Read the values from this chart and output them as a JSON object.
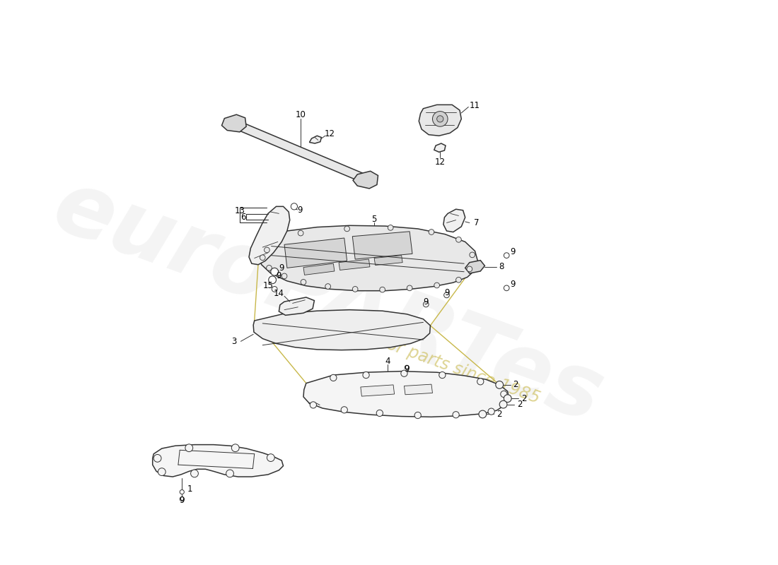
{
  "background_color": "#ffffff",
  "line_color": "#333333",
  "fill_light": "#f8f8f8",
  "fill_mid": "#eeeeee",
  "watermark_color_main": "#e0e0e0",
  "watermark_color_sub": "#c8b84a",
  "gold": "#c8b84a"
}
